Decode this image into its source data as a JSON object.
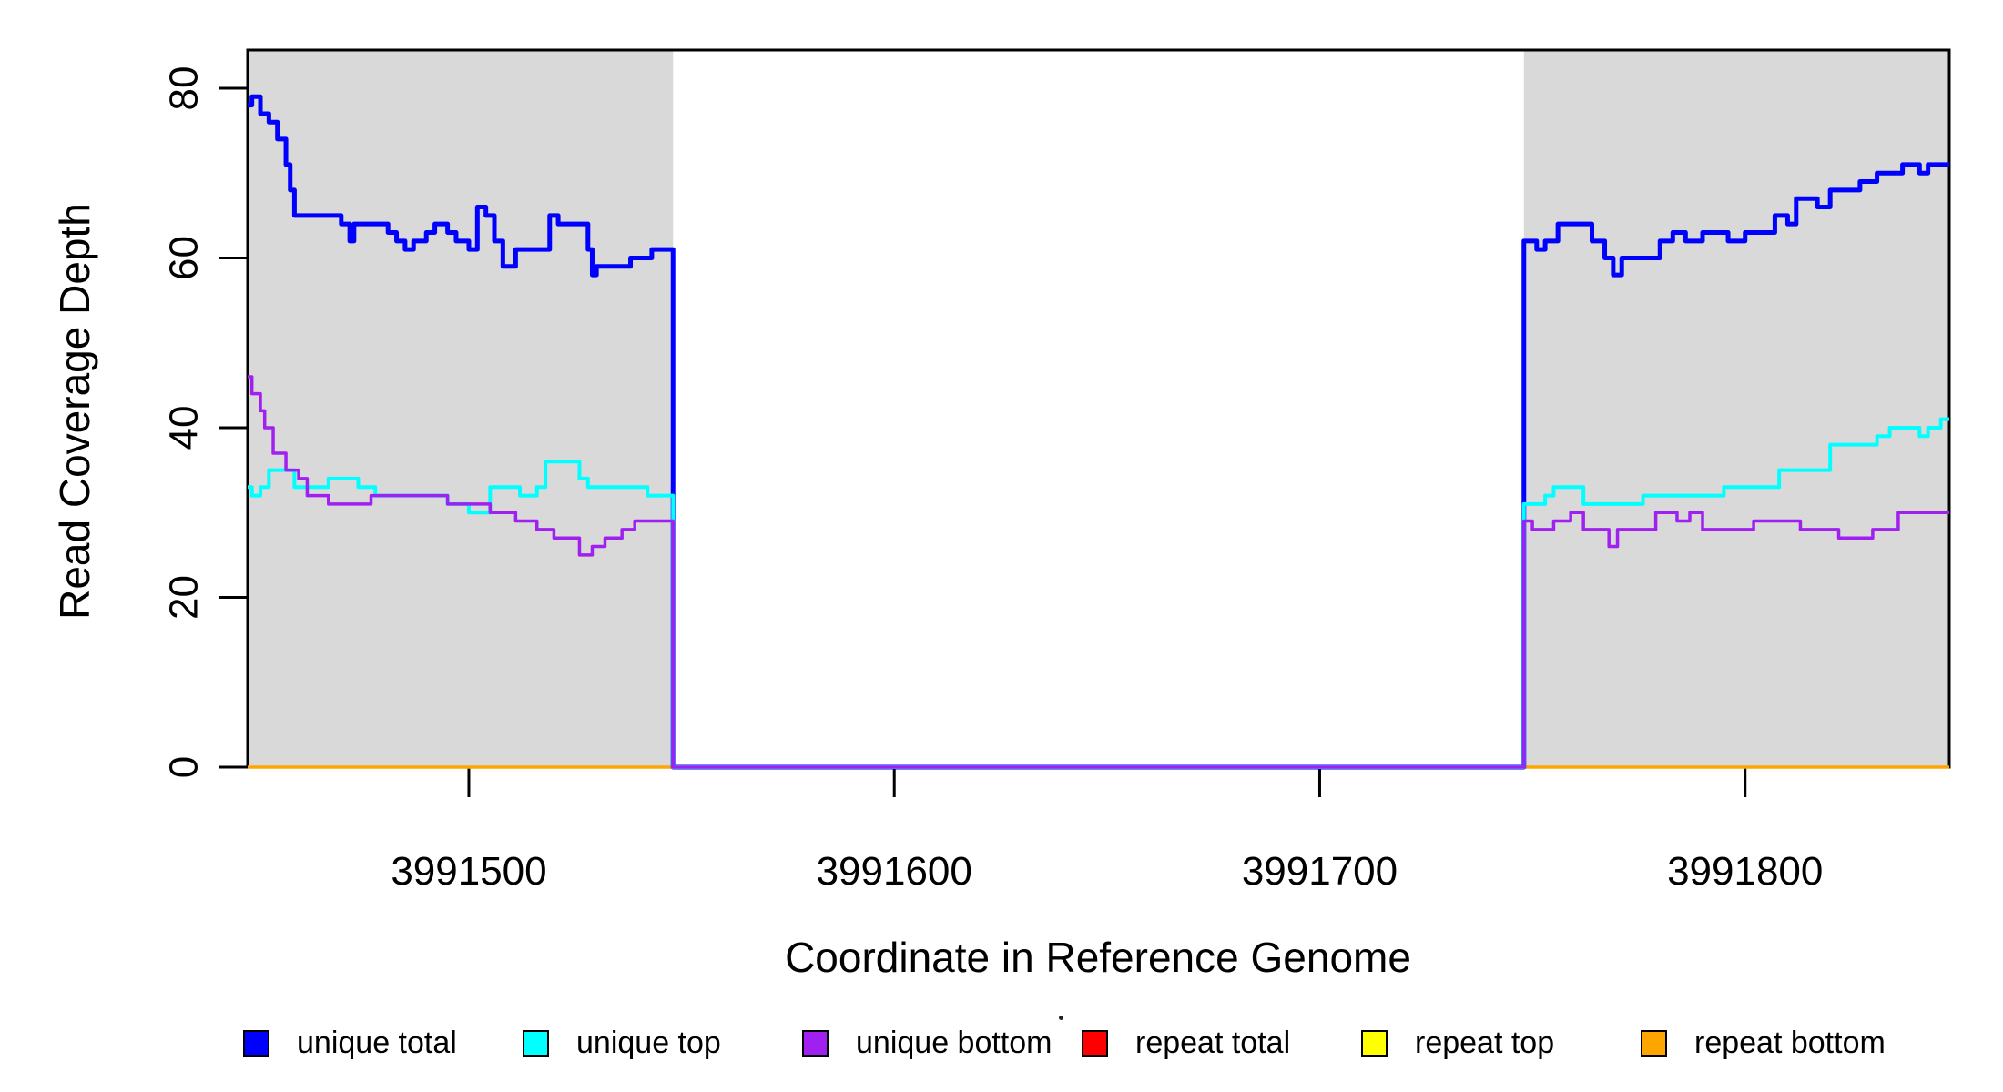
{
  "chart_data": {
    "type": "line",
    "step_style": true,
    "title": "",
    "xlabel": "Coordinate in Reference Genome",
    "ylabel": "Read Coverage Depth",
    "xlim": [
      3991448,
      3991848
    ],
    "ylim": [
      0,
      84.5
    ],
    "x_ticks": [
      3991500,
      3991600,
      3991700,
      3991800
    ],
    "y_ticks": [
      0,
      20,
      40,
      60,
      80
    ],
    "grid": false,
    "legend_position": "bottom",
    "shade_color": "#D9D9D9",
    "shaded_regions": [
      [
        3991448,
        3991548
      ],
      [
        3991748,
        3991848
      ]
    ],
    "series": [
      {
        "name": "repeat total",
        "color": "#FF0000",
        "width": 3,
        "points": [
          [
            3991448,
            0
          ]
        ]
      },
      {
        "name": "repeat top",
        "color": "#FFFF00",
        "width": 3,
        "points": [
          [
            3991448,
            0
          ]
        ]
      },
      {
        "name": "repeat bottom",
        "color": "#FFA500",
        "width": 3.5,
        "points": [
          [
            3991448,
            0
          ]
        ]
      },
      {
        "name": "unique total",
        "color": "#0000FF",
        "width": 5,
        "points": [
          [
            3991448,
            78
          ],
          [
            3991449,
            79
          ],
          [
            3991451,
            77
          ],
          [
            3991453,
            76
          ],
          [
            3991455,
            74
          ],
          [
            3991457,
            71
          ],
          [
            3991458,
            68
          ],
          [
            3991459,
            65
          ],
          [
            3991470,
            64
          ],
          [
            3991472,
            62
          ],
          [
            3991473,
            64
          ],
          [
            3991481,
            63
          ],
          [
            3991483,
            62
          ],
          [
            3991485,
            61
          ],
          [
            3991487,
            62
          ],
          [
            3991490,
            63
          ],
          [
            3991492,
            64
          ],
          [
            3991495,
            63
          ],
          [
            3991497,
            62
          ],
          [
            3991500,
            61
          ],
          [
            3991502,
            66
          ],
          [
            3991504,
            65
          ],
          [
            3991506,
            62
          ],
          [
            3991508,
            59
          ],
          [
            3991511,
            61
          ],
          [
            3991519,
            65
          ],
          [
            3991521,
            64
          ],
          [
            3991528,
            61
          ],
          [
            3991529,
            58
          ],
          [
            3991530,
            59
          ],
          [
            3991538,
            60
          ],
          [
            3991543,
            61
          ],
          [
            3991548,
            0
          ],
          [
            3991748,
            62
          ],
          [
            3991751,
            61
          ],
          [
            3991753,
            62
          ],
          [
            3991756,
            64
          ],
          [
            3991764,
            62
          ],
          [
            3991767,
            60
          ],
          [
            3991769,
            58
          ],
          [
            3991771,
            60
          ],
          [
            3991780,
            62
          ],
          [
            3991783,
            63
          ],
          [
            3991786,
            62
          ],
          [
            3991790,
            63
          ],
          [
            3991796,
            62
          ],
          [
            3991800,
            63
          ],
          [
            3991807,
            65
          ],
          [
            3991810,
            64
          ],
          [
            3991812,
            67
          ],
          [
            3991817,
            66
          ],
          [
            3991820,
            68
          ],
          [
            3991827,
            69
          ],
          [
            3991831,
            70
          ],
          [
            3991837,
            71
          ],
          [
            3991841,
            70
          ],
          [
            3991843,
            71
          ]
        ]
      },
      {
        "name": "unique top",
        "color": "#00FFFF",
        "width": 4,
        "points": [
          [
            3991448,
            33
          ],
          [
            3991449,
            32
          ],
          [
            3991451,
            33
          ],
          [
            3991453,
            35
          ],
          [
            3991459,
            33
          ],
          [
            3991467,
            34
          ],
          [
            3991474,
            33
          ],
          [
            3991478,
            32
          ],
          [
            3991495,
            31
          ],
          [
            3991500,
            30
          ],
          [
            3991505,
            33
          ],
          [
            3991512,
            32
          ],
          [
            3991516,
            33
          ],
          [
            3991518,
            36
          ],
          [
            3991526,
            34
          ],
          [
            3991528,
            33
          ],
          [
            3991542,
            32
          ],
          [
            3991548,
            0
          ],
          [
            3991748,
            31
          ],
          [
            3991753,
            32
          ],
          [
            3991755,
            33
          ],
          [
            3991762,
            31
          ],
          [
            3991776,
            32
          ],
          [
            3991795,
            33
          ],
          [
            3991808,
            35
          ],
          [
            3991820,
            38
          ],
          [
            3991831,
            39
          ],
          [
            3991834,
            40
          ],
          [
            3991841,
            39
          ],
          [
            3991843,
            40
          ],
          [
            3991846,
            41
          ]
        ]
      },
      {
        "name": "unique bottom",
        "color": "#A020F0",
        "width": 3.5,
        "points": [
          [
            3991448,
            46
          ],
          [
            3991449,
            44
          ],
          [
            3991451,
            42
          ],
          [
            3991452,
            40
          ],
          [
            3991454,
            37
          ],
          [
            3991457,
            35
          ],
          [
            3991460,
            34
          ],
          [
            3991462,
            32
          ],
          [
            3991467,
            31
          ],
          [
            3991477,
            32
          ],
          [
            3991495,
            31
          ],
          [
            3991505,
            30
          ],
          [
            3991511,
            29
          ],
          [
            3991516,
            28
          ],
          [
            3991520,
            27
          ],
          [
            3991526,
            25
          ],
          [
            3991529,
            26
          ],
          [
            3991532,
            27
          ],
          [
            3991536,
            28
          ],
          [
            3991539,
            29
          ],
          [
            3991548,
            0
          ],
          [
            3991748,
            29
          ],
          [
            3991750,
            28
          ],
          [
            3991755,
            29
          ],
          [
            3991759,
            30
          ],
          [
            3991762,
            28
          ],
          [
            3991768,
            26
          ],
          [
            3991770,
            28
          ],
          [
            3991779,
            30
          ],
          [
            3991784,
            29
          ],
          [
            3991787,
            30
          ],
          [
            3991790,
            28
          ],
          [
            3991802,
            29
          ],
          [
            3991813,
            28
          ],
          [
            3991822,
            27
          ],
          [
            3991830,
            28
          ],
          [
            3991836,
            30
          ]
        ]
      }
    ]
  },
  "legend": {
    "items": [
      {
        "label": "unique total",
        "color": "#0000FF"
      },
      {
        "label": "unique top",
        "color": "#00FFFF"
      },
      {
        "label": "unique bottom",
        "color": "#A020F0"
      },
      {
        "label": "repeat total",
        "color": "#FF0000"
      },
      {
        "label": "repeat top",
        "color": "#FFFF00"
      },
      {
        "label": "repeat bottom",
        "color": "#FFA500"
      }
    ]
  }
}
